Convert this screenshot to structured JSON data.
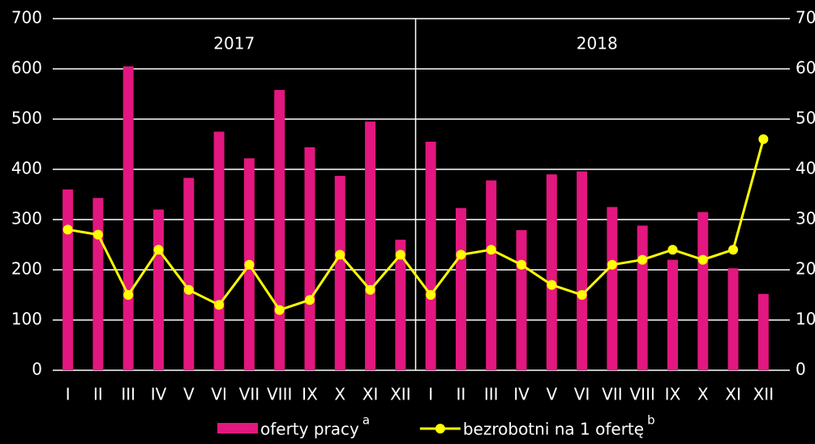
{
  "chart_data": {
    "type": "bar_line",
    "categories": [
      "I",
      "II",
      "III",
      "IV",
      "V",
      "VI",
      "VII",
      "VIII",
      "IX",
      "X",
      "XI",
      "XII",
      "I",
      "II",
      "III",
      "IV",
      "V",
      "VI",
      "VII",
      "VIII",
      "IX",
      "X",
      "XI",
      "XII"
    ],
    "annotations": [
      "2017",
      "2018"
    ],
    "series": [
      {
        "name": "oferty pracy",
        "note": "a",
        "color": "#e2177f",
        "type": "bar",
        "values": [
          360,
          343,
          605,
          320,
          383,
          475,
          422,
          558,
          444,
          387,
          495,
          260,
          455,
          323,
          378,
          279,
          390,
          396,
          325,
          288,
          220,
          315,
          203,
          152
        ]
      },
      {
        "name": "bezrobotni na 1 ofertę",
        "note": "b",
        "color": "#ffff00",
        "type": "line",
        "axis": "y2",
        "values": [
          28,
          27,
          15,
          24,
          16,
          13,
          21,
          12,
          14,
          23,
          16,
          23,
          15,
          23,
          24,
          21,
          17,
          15,
          21,
          22,
          24,
          22,
          24,
          46
        ]
      }
    ],
    "ylim": [
      0,
      700
    ],
    "yticks": [
      0,
      100,
      200,
      300,
      400,
      500,
      600,
      700
    ],
    "y2lim": [
      0,
      70
    ],
    "y2ticks": [
      0,
      10,
      20,
      30,
      40,
      50,
      60,
      70
    ],
    "grid": true
  }
}
